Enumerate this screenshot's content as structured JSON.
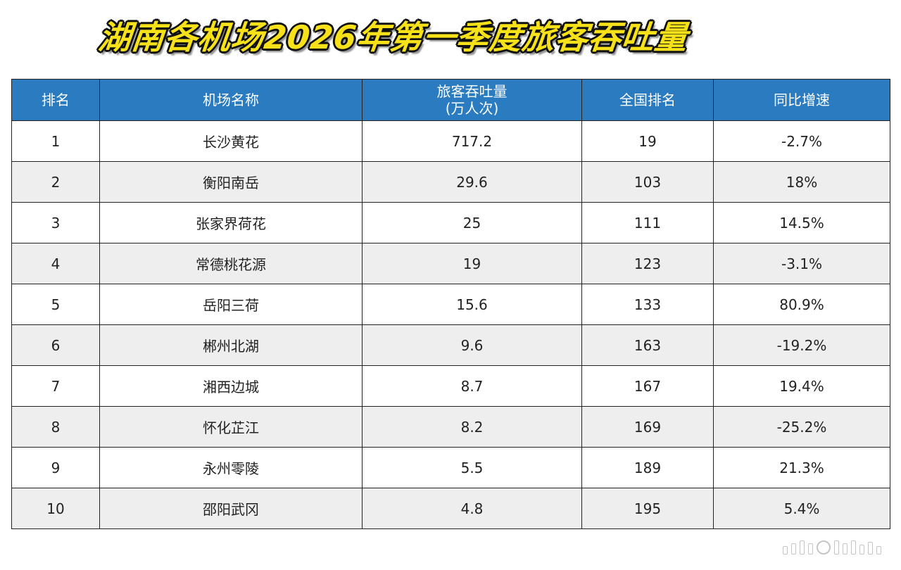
{
  "title": "湖南各机场2026年第一季度旅客吞吐量",
  "table": {
    "headers": {
      "rank": "排名",
      "airport": "机场名称",
      "throughput_line1": "旅客吞吐量",
      "throughput_line2": "(万人次)",
      "national_rank": "全国排名",
      "yoy": "同比增速"
    },
    "rows": [
      {
        "rank": "1",
        "airport": "长沙黄花",
        "throughput": "717.2",
        "national_rank": "19",
        "yoy": "-2.7%"
      },
      {
        "rank": "2",
        "airport": "衡阳南岳",
        "throughput": "29.6",
        "national_rank": "103",
        "yoy": "18%"
      },
      {
        "rank": "3",
        "airport": "张家界荷花",
        "throughput": "25",
        "national_rank": "111",
        "yoy": "14.5%"
      },
      {
        "rank": "4",
        "airport": "常德桃花源",
        "throughput": "19",
        "national_rank": "123",
        "yoy": "-3.1%"
      },
      {
        "rank": "5",
        "airport": "岳阳三荷",
        "throughput": "15.6",
        "national_rank": "133",
        "yoy": "80.9%"
      },
      {
        "rank": "6",
        "airport": "郴州北湖",
        "throughput": "9.6",
        "national_rank": "163",
        "yoy": "-19.2%"
      },
      {
        "rank": "7",
        "airport": "湘西边城",
        "throughput": "8.7",
        "national_rank": "167",
        "yoy": "19.4%"
      },
      {
        "rank": "8",
        "airport": "怀化芷江",
        "throughput": "8.2",
        "national_rank": "169",
        "yoy": "-25.2%"
      },
      {
        "rank": "9",
        "airport": "永州零陵",
        "throughput": "5.5",
        "national_rank": "189",
        "yoy": "21.3%"
      },
      {
        "rank": "10",
        "airport": "邵阳武冈",
        "throughput": "4.8",
        "national_rank": "195",
        "yoy": "5.4%"
      }
    ]
  },
  "colors": {
    "header_bg": "#2a7bbf",
    "title_fill": "#f7e21a",
    "stripe": "#eeeeee"
  }
}
